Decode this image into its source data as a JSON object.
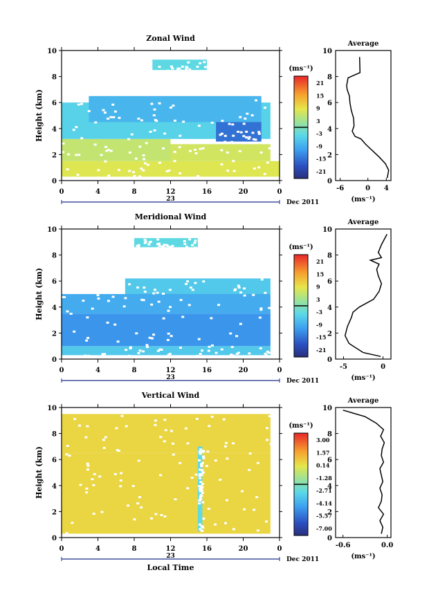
{
  "panels": [
    {
      "id": "zonal",
      "title": "Zonal Wind",
      "ylabel": "Height (km)",
      "yticks": [
        "0",
        "2",
        "4",
        "6",
        "8",
        "10"
      ],
      "xticks": [
        "0",
        "4",
        "8",
        "12",
        "16",
        "20",
        "0"
      ],
      "date_day": "23",
      "date_label": "Dec 2011",
      "cbar_unit": "(ms⁻¹)",
      "cbar_ticks": [
        "21",
        "15",
        "9",
        "3",
        "-3",
        "-9",
        "-15",
        "-21"
      ],
      "avg_title": "Average",
      "avg_xticks": [
        "-6",
        "0",
        "4"
      ],
      "avg_xlabel": "(ms⁻¹)"
    },
    {
      "id": "meridional",
      "title": "Meridional Wind",
      "ylabel": "Height (km)",
      "yticks": [
        "0",
        "2",
        "4",
        "6",
        "8",
        "10"
      ],
      "xticks": [
        "0",
        "4",
        "8",
        "12",
        "16",
        "20",
        "0"
      ],
      "date_day": "23",
      "date_label": "Dec 2011",
      "cbar_unit": "(ms⁻¹)",
      "cbar_ticks": [
        "21",
        "15",
        "9",
        "3",
        "-3",
        "-9",
        "-15",
        "-21"
      ],
      "avg_title": "Average",
      "avg_xticks": [
        "-5",
        "0"
      ],
      "avg_xlabel": "(ms⁻¹)"
    },
    {
      "id": "vertical",
      "title": "Vertical Wind",
      "ylabel": "Height (km)",
      "yticks": [
        "0",
        "2",
        "4",
        "6",
        "8",
        "10"
      ],
      "xticks": [
        "0",
        "4",
        "8",
        "12",
        "16",
        "20",
        "0"
      ],
      "date_day": "23",
      "date_label": "Dec 2011",
      "xlabel": "Local Time",
      "cbar_unit": "(ms⁻¹)",
      "cbar_ticks": [
        "3.00",
        "1.57",
        "0.14",
        "-1.28",
        "-2.71",
        "-4.14",
        "-5.57",
        "-7.00"
      ],
      "avg_title": "Average",
      "avg_xticks": [
        "-0.6",
        "0.0"
      ],
      "avg_xlabel": "(ms⁻¹)"
    }
  ],
  "chart_data": [
    {
      "type": "heatmap",
      "title": "Zonal Wind",
      "ylabel": "Height (km)",
      "x_range_hours": [
        0,
        24
      ],
      "ylim": [
        0,
        10
      ],
      "colorbar_range": [
        -21,
        21
      ],
      "regions": [
        {
          "x": [
            0,
            24
          ],
          "y": [
            0.3,
            1.5
          ],
          "value": 7
        },
        {
          "x": [
            0,
            12
          ],
          "y": [
            1.5,
            3.2
          ],
          "value": 5
        },
        {
          "x": [
            12,
            23
          ],
          "y": [
            1.5,
            2.8
          ],
          "value": 6
        },
        {
          "x": [
            0,
            23
          ],
          "y": [
            3.2,
            6.0
          ],
          "value": -4
        },
        {
          "x": [
            3,
            22
          ],
          "y": [
            4.5,
            6.5
          ],
          "value": -7
        },
        {
          "x": [
            17,
            22
          ],
          "y": [
            3.0,
            4.5
          ],
          "value": -13
        },
        {
          "x": [
            10,
            16
          ],
          "y": [
            8.5,
            9.3
          ],
          "value": -3
        }
      ]
    },
    {
      "type": "line",
      "title": "Average",
      "xlabel": "(ms⁻¹)",
      "xlim": [
        -7,
        5
      ],
      "ylim": [
        0,
        10
      ],
      "x": [
        4.2,
        4.5,
        3.8,
        2.5,
        1.0,
        -0.5,
        -1.5,
        -2.8,
        -3.4,
        -3.0,
        -3.1,
        -3.6,
        -3.9,
        -4.0,
        -4.5,
        -4.6,
        -4.3,
        -1.7,
        -1.8
      ],
      "y": [
        0.2,
        0.8,
        1.3,
        1.8,
        2.3,
        2.8,
        3.2,
        3.4,
        3.8,
        4.2,
        4.8,
        5.4,
        6.0,
        6.5,
        7.0,
        7.3,
        7.9,
        8.3,
        9.5
      ]
    },
    {
      "type": "heatmap",
      "title": "Meridional Wind",
      "ylabel": "Height (km)",
      "x_range_hours": [
        0,
        24
      ],
      "ylim": [
        0,
        10
      ],
      "colorbar_range": [
        -21,
        21
      ],
      "regions": [
        {
          "x": [
            0,
            23
          ],
          "y": [
            0.3,
            1.0
          ],
          "value": -5
        },
        {
          "x": [
            0,
            23
          ],
          "y": [
            1.0,
            3.5
          ],
          "value": -10
        },
        {
          "x": [
            0,
            23
          ],
          "y": [
            3.5,
            5.0
          ],
          "value": -8
        },
        {
          "x": [
            7,
            23
          ],
          "y": [
            5.0,
            6.2
          ],
          "value": -5
        },
        {
          "x": [
            8,
            15
          ],
          "y": [
            8.6,
            9.3
          ],
          "value": -3
        }
      ]
    },
    {
      "type": "line",
      "title": "Average",
      "xlabel": "(ms⁻¹)",
      "xlim": [
        -6,
        1
      ],
      "ylim": [
        0,
        10
      ],
      "x": [
        -0.3,
        -2.5,
        -4.3,
        -4.8,
        -4.5,
        -4.0,
        -3.8,
        -3.0,
        -1.2,
        -0.5,
        -0.2,
        -0.6,
        -0.8,
        -0.5,
        -1.6,
        -0.2,
        -0.6,
        -0.2,
        0.5
      ],
      "y": [
        0.2,
        0.5,
        1.2,
        1.8,
        2.5,
        3.2,
        3.6,
        4.0,
        4.6,
        5.2,
        5.8,
        6.4,
        6.9,
        7.3,
        7.6,
        7.8,
        8.2,
        8.8,
        9.6
      ]
    },
    {
      "type": "heatmap",
      "title": "Vertical Wind",
      "ylabel": "Height (km)",
      "xlabel": "Local Time",
      "x_range_hours": [
        0,
        24
      ],
      "ylim": [
        0,
        10
      ],
      "colorbar_range": [
        -7.0,
        3.0
      ],
      "regions": [
        {
          "x": [
            0,
            23
          ],
          "y": [
            0.3,
            6.5
          ],
          "value": 0.14
        },
        {
          "x": [
            0,
            23
          ],
          "y": [
            6.5,
            9.5
          ],
          "value": 0.14
        },
        {
          "x": [
            15,
            15.5
          ],
          "y": [
            0.5,
            7.0
          ],
          "value": -2.71
        }
      ]
    },
    {
      "type": "line",
      "title": "Average",
      "xlabel": "(ms⁻¹)",
      "xlim": [
        -0.7,
        0.05
      ],
      "ylim": [
        0,
        10
      ],
      "x": [
        -0.08,
        -0.06,
        -0.1,
        -0.05,
        -0.12,
        -0.08,
        -0.07,
        -0.1,
        -0.06,
        -0.08,
        -0.1,
        -0.05,
        -0.08,
        -0.07,
        -0.04,
        -0.09,
        -0.05,
        -0.15,
        -0.3,
        -0.6
      ],
      "y": [
        0.3,
        0.8,
        1.3,
        1.8,
        2.3,
        2.8,
        3.3,
        3.8,
        4.3,
        4.8,
        5.3,
        5.8,
        6.3,
        6.8,
        7.3,
        7.8,
        8.3,
        8.8,
        9.3,
        9.8
      ]
    }
  ]
}
